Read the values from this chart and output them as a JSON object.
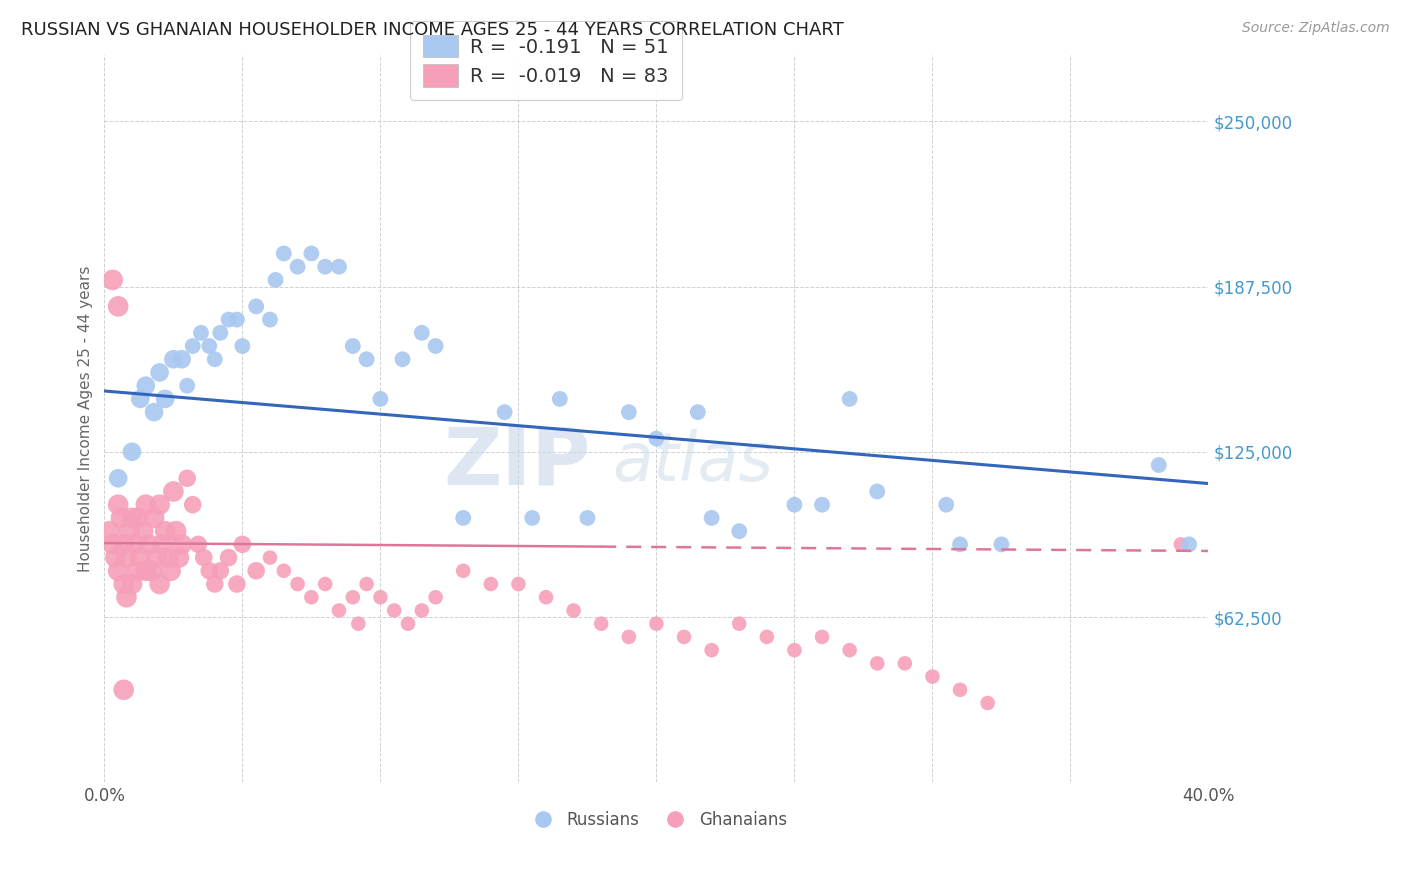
{
  "title": "RUSSIAN VS GHANAIAN HOUSEHOLDER INCOME AGES 25 - 44 YEARS CORRELATION CHART",
  "source": "Source: ZipAtlas.com",
  "ylabel": "Householder Income Ages 25 - 44 years",
  "watermark": "ZIPatlas",
  "xlim": [
    0.0,
    0.4
  ],
  "ylim": [
    0,
    275000
  ],
  "xtick_positions": [
    0.0,
    0.05,
    0.1,
    0.15,
    0.2,
    0.25,
    0.3,
    0.35,
    0.4
  ],
  "xticklabels": [
    "0.0%",
    "",
    "",
    "",
    "",
    "",
    "",
    "",
    "40.0%"
  ],
  "ytick_values": [
    62500,
    125000,
    187500,
    250000
  ],
  "ytick_labels": [
    "$62,500",
    "$125,000",
    "$187,500",
    "$250,000"
  ],
  "russian_R": "-0.191",
  "russian_N": "51",
  "ghanaian_R": "-0.019",
  "ghanaian_N": "83",
  "russian_color": "#a8c8f0",
  "ghanaian_color": "#f5a0b8",
  "russian_line_color": "#3366bb",
  "ghanaian_line_color": "#dd7799",
  "background_color": "#ffffff",
  "grid_color": "#d0d0d0",
  "title_color": "#222222",
  "axis_label_color": "#666666",
  "ytick_label_color": "#4499cc",
  "source_color": "#999999",
  "legend_text_color": "#333333",
  "legend_R_color": "#3366cc",
  "rus_line_x0": 0.0,
  "rus_line_x1": 0.4,
  "rus_line_y0": 148000,
  "rus_line_y1": 113000,
  "gha_line_x0": 0.0,
  "gha_line_x1": 0.4,
  "gha_line_y0": 90500,
  "gha_line_y1": 87500,
  "russians_x": [
    0.005,
    0.01,
    0.013,
    0.015,
    0.018,
    0.02,
    0.022,
    0.025,
    0.028,
    0.03,
    0.032,
    0.035,
    0.038,
    0.04,
    0.042,
    0.045,
    0.048,
    0.05,
    0.055,
    0.06,
    0.062,
    0.065,
    0.07,
    0.075,
    0.08,
    0.085,
    0.09,
    0.095,
    0.1,
    0.108,
    0.115,
    0.12,
    0.13,
    0.145,
    0.155,
    0.165,
    0.175,
    0.19,
    0.2,
    0.215,
    0.22,
    0.23,
    0.25,
    0.26,
    0.27,
    0.28,
    0.305,
    0.31,
    0.325,
    0.382,
    0.393
  ],
  "russians_y": [
    115000,
    125000,
    145000,
    150000,
    140000,
    155000,
    145000,
    160000,
    160000,
    150000,
    165000,
    170000,
    165000,
    160000,
    170000,
    175000,
    175000,
    165000,
    180000,
    175000,
    190000,
    200000,
    195000,
    200000,
    195000,
    195000,
    165000,
    160000,
    145000,
    160000,
    170000,
    165000,
    100000,
    140000,
    100000,
    145000,
    100000,
    140000,
    130000,
    140000,
    100000,
    95000,
    105000,
    105000,
    145000,
    110000,
    105000,
    90000,
    90000,
    120000,
    90000
  ],
  "ghanaians_x": [
    0.002,
    0.003,
    0.004,
    0.005,
    0.005,
    0.006,
    0.007,
    0.007,
    0.008,
    0.008,
    0.009,
    0.01,
    0.01,
    0.011,
    0.012,
    0.012,
    0.013,
    0.014,
    0.015,
    0.015,
    0.016,
    0.017,
    0.018,
    0.019,
    0.02,
    0.02,
    0.021,
    0.022,
    0.023,
    0.024,
    0.025,
    0.026,
    0.027,
    0.028,
    0.03,
    0.032,
    0.034,
    0.036,
    0.038,
    0.04,
    0.042,
    0.045,
    0.048,
    0.05,
    0.055,
    0.06,
    0.065,
    0.07,
    0.075,
    0.08,
    0.085,
    0.09,
    0.092,
    0.095,
    0.1,
    0.105,
    0.11,
    0.115,
    0.12,
    0.13,
    0.14,
    0.15,
    0.16,
    0.17,
    0.18,
    0.19,
    0.2,
    0.21,
    0.22,
    0.23,
    0.24,
    0.25,
    0.26,
    0.27,
    0.28,
    0.29,
    0.3,
    0.31,
    0.32,
    0.39,
    0.003,
    0.005,
    0.007
  ],
  "ghanaians_y": [
    95000,
    90000,
    85000,
    105000,
    80000,
    100000,
    90000,
    75000,
    85000,
    70000,
    95000,
    100000,
    75000,
    90000,
    100000,
    80000,
    85000,
    95000,
    105000,
    80000,
    90000,
    80000,
    100000,
    85000,
    105000,
    75000,
    90000,
    95000,
    85000,
    80000,
    110000,
    95000,
    85000,
    90000,
    115000,
    105000,
    90000,
    85000,
    80000,
    75000,
    80000,
    85000,
    75000,
    90000,
    80000,
    85000,
    80000,
    75000,
    70000,
    75000,
    65000,
    70000,
    60000,
    75000,
    70000,
    65000,
    60000,
    65000,
    70000,
    80000,
    75000,
    75000,
    70000,
    65000,
    60000,
    55000,
    60000,
    55000,
    50000,
    60000,
    55000,
    50000,
    55000,
    50000,
    45000,
    45000,
    40000,
    35000,
    30000,
    90000,
    190000,
    180000,
    35000
  ],
  "ghanaians_size_large": [
    0,
    1,
    2,
    3,
    4,
    5,
    6,
    7,
    8,
    9,
    10,
    11,
    12,
    13,
    14,
    15,
    16,
    17,
    18,
    19,
    20,
    21,
    22,
    23,
    24,
    25,
    26,
    27,
    28,
    29
  ]
}
